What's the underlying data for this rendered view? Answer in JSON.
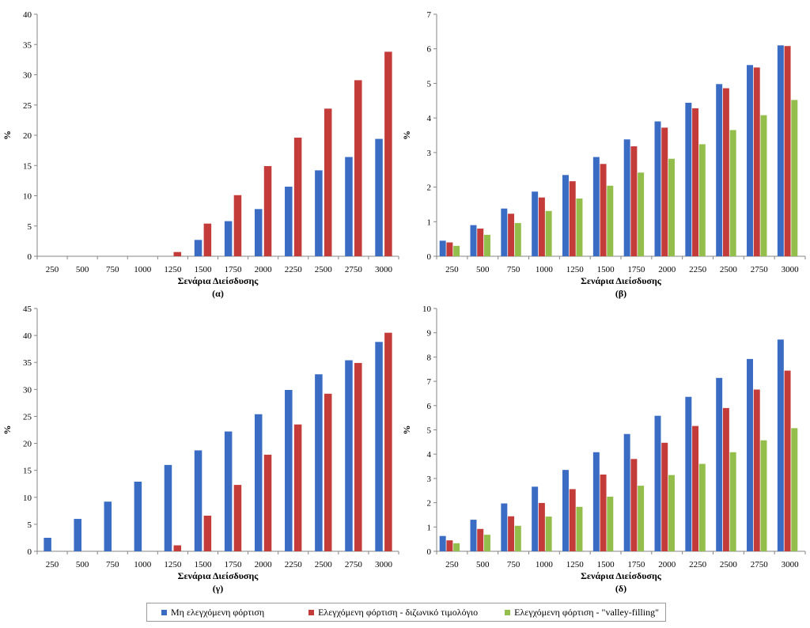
{
  "colors": {
    "series": [
      "#3a6cc4",
      "#c43c39",
      "#93be4b"
    ],
    "axis": "#868686"
  },
  "legend": [
    "Μη ελεγχόμενη φόρτιση",
    "Ελεγχόμενη φόρτιση - διζωνικό τιμολόγιο",
    "Ελεγχόμενη φόρτιση - \"valley-filling\""
  ],
  "chart_data": [
    {
      "type": "bar",
      "caption": "(α)",
      "xlabel": "Σενάρια Διείσδυσης",
      "ylabel": "%",
      "ylim": [
        0,
        40
      ],
      "ystep": 5,
      "categories": [
        "250",
        "500",
        "750",
        "1000",
        "1250",
        "1500",
        "1750",
        "2000",
        "2250",
        "2500",
        "2750",
        "3000"
      ],
      "series": [
        {
          "name": "Μη ελεγχόμενη φόρτιση",
          "values": [
            0,
            0,
            0,
            0,
            0,
            2.7,
            5.8,
            7.8,
            11.5,
            14.2,
            16.4,
            19.4
          ]
        },
        {
          "name": "Ελεγχόμενη φόρτιση - διζωνικό τιμολόγιο",
          "values": [
            0,
            0,
            0,
            0,
            0.7,
            5.4,
            10.1,
            14.9,
            19.6,
            24.4,
            29.1,
            33.8
          ]
        }
      ]
    },
    {
      "type": "bar",
      "caption": "(β)",
      "xlabel": "Σενάρια Διείσδυσης",
      "ylabel": "%",
      "ylim": [
        0,
        7
      ],
      "ystep": 1,
      "categories": [
        "250",
        "500",
        "750",
        "1000",
        "1250",
        "1500",
        "1750",
        "2000",
        "2250",
        "2500",
        "2750",
        "3000"
      ],
      "series": [
        {
          "name": "Μη ελεγχόμενη φόρτιση",
          "values": [
            0.45,
            0.9,
            1.38,
            1.87,
            2.35,
            2.87,
            3.38,
            3.9,
            4.44,
            4.98,
            5.53,
            6.1
          ]
        },
        {
          "name": "Ελεγχόμενη φόρτιση - διζωνικό τιμολόγιο",
          "values": [
            0.4,
            0.8,
            1.23,
            1.7,
            2.17,
            2.67,
            3.18,
            3.72,
            4.28,
            4.86,
            5.46,
            6.08
          ]
        },
        {
          "name": "Ελεγχόμενη φόρτιση - \"valley-filling\"",
          "values": [
            0.3,
            0.62,
            0.96,
            1.31,
            1.67,
            2.04,
            2.42,
            2.82,
            3.24,
            3.65,
            4.08,
            4.52
          ]
        }
      ]
    },
    {
      "type": "bar",
      "caption": "(γ)",
      "xlabel": "Σενάρια Διείσδυσης",
      "ylabel": "%",
      "ylim": [
        0,
        45
      ],
      "ystep": 5,
      "categories": [
        "250",
        "500",
        "750",
        "1000",
        "1250",
        "1500",
        "1750",
        "2000",
        "2250",
        "2500",
        "2750",
        "3000"
      ],
      "series": [
        {
          "name": "Μη ελεγχόμενη φόρτιση",
          "values": [
            2.5,
            6.0,
            9.2,
            12.9,
            16.0,
            18.7,
            22.2,
            25.4,
            29.9,
            32.8,
            35.4,
            38.8
          ]
        },
        {
          "name": "Ελεγχόμενη φόρτιση - διζωνικό τιμολόγιο",
          "values": [
            0,
            0,
            0,
            0,
            1.1,
            6.6,
            12.3,
            17.9,
            23.5,
            29.2,
            34.9,
            40.5
          ]
        }
      ]
    },
    {
      "type": "bar",
      "caption": "(δ)",
      "xlabel": "Σενάρια Διείσδυσης",
      "ylabel": "%",
      "ylim": [
        0,
        10
      ],
      "ystep": 1,
      "categories": [
        "250",
        "500",
        "750",
        "1000",
        "1250",
        "1500",
        "1750",
        "2000",
        "2250",
        "2500",
        "2750",
        "3000"
      ],
      "series": [
        {
          "name": "Μη ελεγχόμενη φόρτιση",
          "values": [
            0.63,
            1.3,
            1.97,
            2.66,
            3.35,
            4.08,
            4.83,
            5.58,
            6.36,
            7.14,
            7.92,
            8.72
          ]
        },
        {
          "name": "Ελεγχόμενη φόρτιση - διζωνικό τιμολόγιο",
          "values": [
            0.45,
            0.92,
            1.44,
            1.99,
            2.56,
            3.16,
            3.8,
            4.47,
            5.16,
            5.9,
            6.66,
            7.44
          ]
        },
        {
          "name": "Ελεγχόμενη φόρτιση - \"valley-filling\"",
          "values": [
            0.33,
            0.68,
            1.05,
            1.43,
            1.83,
            2.25,
            2.7,
            3.14,
            3.6,
            4.08,
            4.57,
            5.07
          ]
        }
      ]
    }
  ]
}
